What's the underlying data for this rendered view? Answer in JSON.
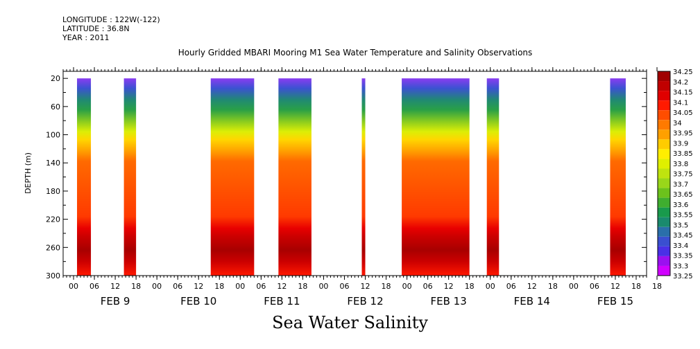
{
  "header": {
    "longitude": "LONGITUDE : 122W(-122)",
    "latitude": "LATITUDE : 36.8N",
    "year": "YEAR : 2011"
  },
  "caption": "Sea Water Salinity",
  "chart_data": {
    "type": "heatmap",
    "title": "Hourly Gridded MBARI Mooring M1 Sea Water Temperature and Salinity Observations",
    "ylabel": "DEPTH (m)",
    "xlabel": "",
    "ylim": [
      300,
      10
    ],
    "yticks": [
      20,
      60,
      100,
      140,
      180,
      220,
      260,
      300
    ],
    "xlim_hours": [
      0,
      168
    ],
    "xtick_labels": [
      "00",
      "06",
      "12",
      "18",
      "00",
      "06",
      "12",
      "18",
      "00",
      "06",
      "12",
      "18",
      "00",
      "06",
      "12",
      "18",
      "00",
      "06",
      "12",
      "18",
      "00",
      "06",
      "12",
      "18",
      "00",
      "06",
      "12",
      "18",
      "18"
    ],
    "day_labels": [
      "FEB 9",
      "FEB 10",
      "FEB 11",
      "FEB 12",
      "FEB 13",
      "FEB 14",
      "FEB 15"
    ],
    "colorbar_labels": [
      "34.25",
      "34.2",
      "34.15",
      "34.1",
      "34.05",
      "34",
      "33.95",
      "33.9",
      "33.85",
      "33.8",
      "33.75",
      "33.7",
      "33.65",
      "33.6",
      "33.55",
      "33.5",
      "33.45",
      "33.4",
      "33.35",
      "33.3",
      "33.25"
    ],
    "colorbar_colors": [
      "#a00000",
      "#c00000",
      "#e00000",
      "#ff1a00",
      "#ff4d00",
      "#ff7a00",
      "#ffa000",
      "#ffcc00",
      "#ffee00",
      "#dfef00",
      "#bfe30f",
      "#99d61a",
      "#6cc21c",
      "#3fae2f",
      "#199a4c",
      "#1a8a6e",
      "#2a6faa",
      "#3a4fd0",
      "#4a30e6",
      "#9a10f0",
      "#d000ff"
    ],
    "observation_segments": [
      {
        "start_hour": 4,
        "end_hour": 8
      },
      {
        "start_hour": 17.5,
        "end_hour": 21
      },
      {
        "start_hour": 42.5,
        "end_hour": 55
      },
      {
        "start_hour": 62,
        "end_hour": 71.5
      },
      {
        "start_hour": 86,
        "end_hour": 87
      },
      {
        "start_hour": 97.5,
        "end_hour": 117
      },
      {
        "start_hour": 122,
        "end_hour": 125.5
      },
      {
        "start_hour": 157.5,
        "end_hour": 162
      }
    ],
    "grid": false,
    "legend": "right"
  }
}
